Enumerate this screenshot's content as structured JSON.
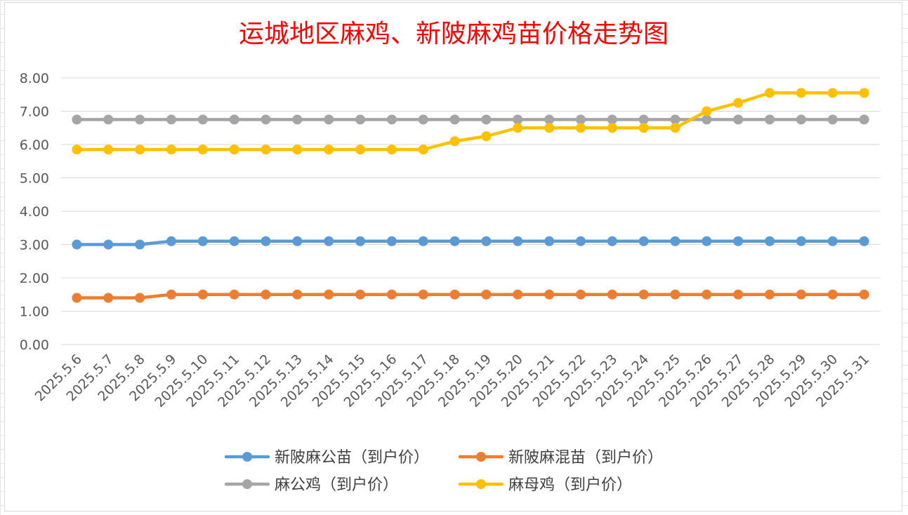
{
  "chart_data": {
    "type": "line",
    "title": "运城地区麻鸡、新陂麻鸡苗价格走势图",
    "title_color": "#ff0000",
    "categories": [
      "2025.5.6",
      "2025.5.7",
      "2025.5.8",
      "2025.5.9",
      "2025.5.10",
      "2025.5.11",
      "2025.5.12",
      "2025.5.13",
      "2025.5.14",
      "2025.5.15",
      "2025.5.16",
      "2025.5.17",
      "2025.5.18",
      "2025.5.19",
      "2025.5.20",
      "2025.5.21",
      "2025.5.22",
      "2025.5.23",
      "2025.5.24",
      "2025.5.25",
      "2025.5.26",
      "2025.5.27",
      "2025.5.28",
      "2025.5.29",
      "2025.5.30",
      "2025.5.31"
    ],
    "y_ticks": [
      "0.00",
      "1.00",
      "2.00",
      "3.00",
      "4.00",
      "5.00",
      "6.00",
      "7.00",
      "8.00"
    ],
    "ylim": [
      0,
      8
    ],
    "grid": true,
    "legend_position": "bottom",
    "series": [
      {
        "name": "新陂麻公苗（到户价）",
        "color": "#5b9bd5",
        "values": [
          3.0,
          3.0,
          3.0,
          3.1,
          3.1,
          3.1,
          3.1,
          3.1,
          3.1,
          3.1,
          3.1,
          3.1,
          3.1,
          3.1,
          3.1,
          3.1,
          3.1,
          3.1,
          3.1,
          3.1,
          3.1,
          3.1,
          3.1,
          3.1,
          3.1,
          3.1
        ]
      },
      {
        "name": "新陂麻混苗（到户价）",
        "color": "#ed7d31",
        "values": [
          1.4,
          1.4,
          1.4,
          1.5,
          1.5,
          1.5,
          1.5,
          1.5,
          1.5,
          1.5,
          1.5,
          1.5,
          1.5,
          1.5,
          1.5,
          1.5,
          1.5,
          1.5,
          1.5,
          1.5,
          1.5,
          1.5,
          1.5,
          1.5,
          1.5,
          1.5
        ]
      },
      {
        "name": "麻公鸡（到户价）",
        "color": "#a5a5a5",
        "values": [
          6.75,
          6.75,
          6.75,
          6.75,
          6.75,
          6.75,
          6.75,
          6.75,
          6.75,
          6.75,
          6.75,
          6.75,
          6.75,
          6.75,
          6.75,
          6.75,
          6.75,
          6.75,
          6.75,
          6.75,
          6.75,
          6.75,
          6.75,
          6.75,
          6.75,
          6.75
        ]
      },
      {
        "name": "麻母鸡（到户价）",
        "color": "#ffc000",
        "values": [
          5.85,
          5.85,
          5.85,
          5.85,
          5.85,
          5.85,
          5.85,
          5.85,
          5.85,
          5.85,
          5.85,
          5.85,
          6.1,
          6.25,
          6.5,
          6.5,
          6.5,
          6.5,
          6.5,
          6.5,
          7.0,
          7.25,
          7.55,
          7.55,
          7.55,
          7.55
        ]
      }
    ]
  }
}
